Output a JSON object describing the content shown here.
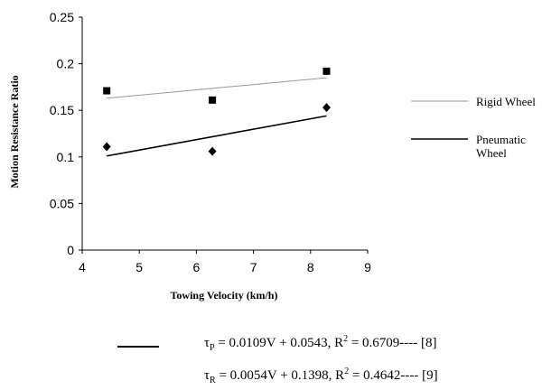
{
  "chart_data": {
    "type": "scatter",
    "xlabel": "Towing Velocity (km/h)",
    "ylabel": "Motion Resistance Ratio",
    "xlim": [
      4,
      9
    ],
    "ylim": [
      0,
      0.25
    ],
    "x_ticks": [
      "4",
      "5",
      "6",
      "7",
      "8",
      "9"
    ],
    "y_ticks": [
      "0",
      "0.05",
      "0.1",
      "0.15",
      "0.2",
      "0.25"
    ],
    "legend_position": "right",
    "series": [
      {
        "name": "Rigid Wheel",
        "marker": "square",
        "x": [
          4.43,
          6.28,
          8.28
        ],
        "y": [
          0.171,
          0.161,
          0.192
        ],
        "trend": {
          "x": [
            4.43,
            8.28
          ],
          "y": [
            0.163,
            0.185
          ]
        },
        "line_style": "thin-gray",
        "color": "#999999"
      },
      {
        "name": "Pneumatic\nWheel",
        "marker": "diamond",
        "x": [
          4.43,
          6.28,
          8.28
        ],
        "y": [
          0.111,
          0.106,
          0.153
        ],
        "trend": {
          "x": [
            4.43,
            8.28
          ],
          "y": [
            0.101,
            0.144
          ]
        },
        "line_style": "thick-black",
        "color": "#000000"
      }
    ]
  },
  "equations": {
    "p": {
      "tau": "τ",
      "sub": "P",
      "body": " = 0.0109V + 0.0543,  R",
      "sup": "2",
      "tail": " = 0.6709---- [8]"
    },
    "r": {
      "tau": "τ",
      "sub": "R",
      "body": " = 0.0054V + 0.1398,  R",
      "sup": "2",
      "tail": " = 0.4642---- [9]"
    }
  }
}
